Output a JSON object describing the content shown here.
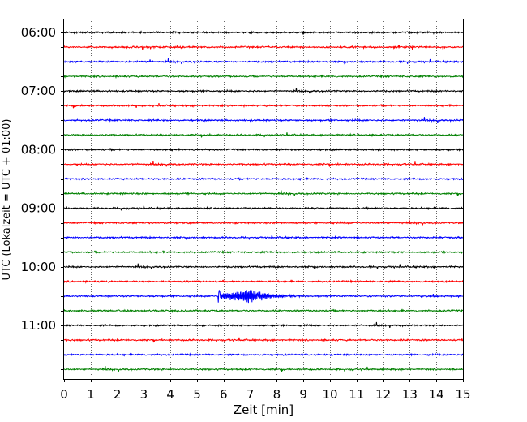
{
  "chart_data": {
    "type": "line",
    "title": "",
    "xlabel": "Zeit  [min]",
    "ylabel": "UTC (Lokalzeit = UTC + 01:00)",
    "xlim": [
      0,
      15
    ],
    "x_ticks": [
      "0",
      "1",
      "2",
      "3",
      "4",
      "5",
      "6",
      "7",
      "8",
      "9",
      "10",
      "11",
      "12",
      "13",
      "14",
      "15"
    ],
    "hour_labels": [
      "06:00",
      "07:00",
      "08:00",
      "09:00",
      "10:00",
      "11:00"
    ],
    "grid": "vertical dotted lines at each minute",
    "colors": [
      "#000000",
      "#ff0000",
      "#0000ff",
      "#008000"
    ],
    "series": [
      {
        "start": "06:00",
        "color": "#000000"
      },
      {
        "start": "06:15",
        "color": "#ff0000"
      },
      {
        "start": "06:30",
        "color": "#0000ff"
      },
      {
        "start": "06:45",
        "color": "#008000"
      },
      {
        "start": "07:00",
        "color": "#000000"
      },
      {
        "start": "07:15",
        "color": "#ff0000"
      },
      {
        "start": "07:30",
        "color": "#0000ff"
      },
      {
        "start": "07:45",
        "color": "#008000"
      },
      {
        "start": "08:00",
        "color": "#000000"
      },
      {
        "start": "08:15",
        "color": "#ff0000"
      },
      {
        "start": "08:30",
        "color": "#0000ff"
      },
      {
        "start": "08:45",
        "color": "#008000"
      },
      {
        "start": "09:00",
        "color": "#000000"
      },
      {
        "start": "09:15",
        "color": "#ff0000"
      },
      {
        "start": "09:30",
        "color": "#0000ff"
      },
      {
        "start": "09:45",
        "color": "#008000"
      },
      {
        "start": "10:00",
        "color": "#000000"
      },
      {
        "start": "10:15",
        "color": "#ff0000"
      },
      {
        "start": "10:30",
        "color": "#0000ff",
        "event": {
          "from_min": 5.8,
          "peak_min": 7.0,
          "to_min": 9.2
        }
      },
      {
        "start": "10:45",
        "color": "#008000"
      },
      {
        "start": "11:00",
        "color": "#000000"
      },
      {
        "start": "11:15",
        "color": "#ff0000"
      },
      {
        "start": "11:30",
        "color": "#0000ff"
      },
      {
        "start": "11:45",
        "color": "#008000"
      }
    ]
  }
}
